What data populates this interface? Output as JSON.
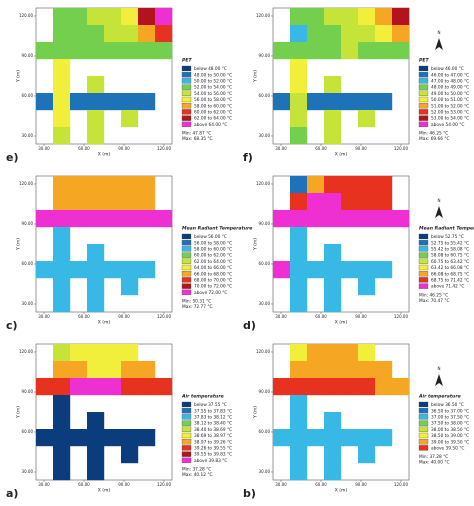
{
  "axes": {
    "x_title": "X (m)",
    "y_title": "Y (m)",
    "xlim": [
      24,
      126
    ],
    "ylim": [
      24,
      126
    ],
    "xticks": [
      {
        "value": 30,
        "label": "30.00"
      },
      {
        "value": 60,
        "label": "60.00"
      },
      {
        "value": 90,
        "label": "90.00"
      },
      {
        "value": 120,
        "label": "120.00"
      }
    ],
    "yticks": [
      {
        "value": 30,
        "label": "30.00"
      },
      {
        "value": 60,
        "label": "60.00"
      },
      {
        "value": 90,
        "label": "90.00"
      },
      {
        "value": 120,
        "label": "120.00"
      }
    ]
  },
  "panels": [
    {
      "label": "e)",
      "title": "PET",
      "legend": [
        {
          "text": "below 48.00 °C",
          "color": "#0b3d7c"
        },
        {
          "text": "48.00 to 50.00 °C",
          "color": "#1e73b8"
        },
        {
          "text": "50.00 to 52.00 °C",
          "color": "#38b8e4"
        },
        {
          "text": "52.00 to 54.00 °C",
          "color": "#74cf4e"
        },
        {
          "text": "54.00 to 56.00 °C",
          "color": "#c6e33a"
        },
        {
          "text": "56.00 to 58.00 °C",
          "color": "#f2ee3c"
        },
        {
          "text": "58.00 to 60.00 °C",
          "color": "#f5a623"
        },
        {
          "text": "60.00 to 62.00 °C",
          "color": "#e6321f"
        },
        {
          "text": "62.00 to 64.00 °C",
          "color": "#b3141c"
        },
        {
          "text": "above 64.00 °C",
          "color": "#ee2fd2"
        }
      ],
      "min": "Min: 47.87 °C",
      "max": "Max: 68.35 °C",
      "grid": [
        [
          null,
          3,
          3,
          4,
          4,
          5,
          8,
          9
        ],
        [
          null,
          3,
          3,
          3,
          4,
          4,
          6,
          7
        ],
        [
          3,
          3,
          3,
          3,
          3,
          3,
          3,
          3
        ],
        [
          null,
          5,
          null,
          null,
          null,
          null,
          null,
          null
        ],
        [
          null,
          5,
          null,
          4,
          null,
          null,
          null,
          null
        ],
        [
          1,
          5,
          1,
          1,
          1,
          1,
          1,
          null
        ],
        [
          null,
          5,
          null,
          4,
          null,
          4,
          null,
          null
        ],
        [
          null,
          4,
          null,
          4,
          null,
          null,
          null,
          null
        ]
      ]
    },
    {
      "label": "f)",
      "title": "PET",
      "legend": [
        {
          "text": "below 46.00 °C",
          "color": "#0b3d7c"
        },
        {
          "text": "46.00 to 47.00 °C",
          "color": "#1e73b8"
        },
        {
          "text": "47.00 to 48.00 °C",
          "color": "#38b8e4"
        },
        {
          "text": "48.00 to 49.00 °C",
          "color": "#74cf4e"
        },
        {
          "text": "49.00 to 50.00 °C",
          "color": "#c6e33a"
        },
        {
          "text": "50.00 to 51.00 °C",
          "color": "#f2ee3c"
        },
        {
          "text": "51.00 to 52.00 °C",
          "color": "#f5a623"
        },
        {
          "text": "52.00 to 53.00 °C",
          "color": "#e6321f"
        },
        {
          "text": "53.00 to 54.00 °C",
          "color": "#b3141c"
        },
        {
          "text": "above 54.00 °C",
          "color": "#ee2fd2"
        }
      ],
      "min": "Min: 46.25 °C",
      "max": "Max: 69.66 °C",
      "grid": [
        [
          null,
          3,
          3,
          4,
          4,
          5,
          6,
          8
        ],
        [
          null,
          2,
          3,
          3,
          4,
          4,
          5,
          6
        ],
        [
          3,
          3,
          3,
          3,
          4,
          3,
          3,
          3
        ],
        [
          null,
          5,
          null,
          null,
          null,
          null,
          null,
          null
        ],
        [
          null,
          5,
          null,
          4,
          null,
          null,
          null,
          null
        ],
        [
          1,
          4,
          1,
          1,
          1,
          1,
          1,
          null
        ],
        [
          null,
          4,
          null,
          4,
          null,
          4,
          null,
          null
        ],
        [
          null,
          3,
          null,
          4,
          null,
          null,
          null,
          null
        ]
      ]
    },
    {
      "label": "c)",
      "title": "Mean Radiant Temperature",
      "legend": [
        {
          "text": "below 56.00 °C",
          "color": "#0b3d7c"
        },
        {
          "text": "56.00 to 58.00 °C",
          "color": "#1e73b8"
        },
        {
          "text": "58.00 to 60.00 °C",
          "color": "#38b8e4"
        },
        {
          "text": "60.00 to 62.00 °C",
          "color": "#74cf4e"
        },
        {
          "text": "62.00 to 64.00 °C",
          "color": "#c6e33a"
        },
        {
          "text": "64.00 to 66.00 °C",
          "color": "#f2ee3c"
        },
        {
          "text": "66.00 to 68.00 °C",
          "color": "#f5a623"
        },
        {
          "text": "68.00 to 70.00 °C",
          "color": "#e6321f"
        },
        {
          "text": "70.00 to 72.00 °C",
          "color": "#b3141c"
        },
        {
          "text": "above 72.00 °C",
          "color": "#ee2fd2"
        }
      ],
      "min": "Min: 50.31 °C",
      "max": "Max: 72.77 °C",
      "grid": [
        [
          null,
          6,
          6,
          6,
          6,
          6,
          6,
          null
        ],
        [
          null,
          6,
          6,
          6,
          6,
          6,
          6,
          null
        ],
        [
          9,
          9,
          9,
          9,
          9,
          9,
          9,
          9
        ],
        [
          null,
          2,
          null,
          null,
          null,
          null,
          null,
          null
        ],
        [
          null,
          2,
          null,
          2,
          null,
          null,
          null,
          null
        ],
        [
          2,
          2,
          2,
          2,
          2,
          2,
          2,
          null
        ],
        [
          null,
          2,
          null,
          2,
          null,
          2,
          null,
          null
        ],
        [
          null,
          2,
          null,
          2,
          null,
          null,
          null,
          null
        ]
      ]
    },
    {
      "label": "d)",
      "title": "Mean Radiant Temperature",
      "legend": [
        {
          "text": "below 52.75 °C",
          "color": "#0b3d7c"
        },
        {
          "text": "52.75 to 55.42 °C",
          "color": "#1e73b8"
        },
        {
          "text": "55.42 to 58.08 °C",
          "color": "#38b8e4"
        },
        {
          "text": "58.08 to 60.75 °C",
          "color": "#74cf4e"
        },
        {
          "text": "60.75 to 63.42 °C",
          "color": "#c6e33a"
        },
        {
          "text": "63.42 to 66.08 °C",
          "color": "#f2ee3c"
        },
        {
          "text": "66.08 to 68.75 °C",
          "color": "#f5a623"
        },
        {
          "text": "68.75 to 71.42 °C",
          "color": "#e6321f"
        },
        {
          "text": "above 71.42 °C",
          "color": "#ee2fd2"
        }
      ],
      "min": "Min: 46.25 °C",
      "max": "Max: 70.47 °C",
      "grid": [
        [
          null,
          1,
          6,
          7,
          7,
          7,
          7,
          null
        ],
        [
          null,
          7,
          8,
          8,
          7,
          7,
          7,
          null
        ],
        [
          8,
          8,
          8,
          8,
          8,
          8,
          8,
          8
        ],
        [
          null,
          2,
          null,
          null,
          null,
          null,
          null,
          null
        ],
        [
          null,
          2,
          null,
          2,
          null,
          null,
          null,
          null
        ],
        [
          8,
          2,
          2,
          2,
          2,
          2,
          2,
          null
        ],
        [
          null,
          2,
          null,
          2,
          null,
          2,
          null,
          null
        ],
        [
          null,
          2,
          null,
          2,
          null,
          null,
          null,
          null
        ]
      ]
    },
    {
      "label": "a)",
      "title": "Air temperature",
      "legend": [
        {
          "text": "below 37.55 °C",
          "color": "#0b3d7c"
        },
        {
          "text": "37.55 to 37.83 °C",
          "color": "#1e73b8"
        },
        {
          "text": "37.83 to 38.12 °C",
          "color": "#38b8e4"
        },
        {
          "text": "38.12 to 38.40 °C",
          "color": "#74cf4e"
        },
        {
          "text": "38.40 to 38.69 °C",
          "color": "#c6e33a"
        },
        {
          "text": "38.69 to 38.97 °C",
          "color": "#f2ee3c"
        },
        {
          "text": "38.97 to 39.26 °C",
          "color": "#f5a623"
        },
        {
          "text": "39.26 to 39.55 °C",
          "color": "#e6321f"
        },
        {
          "text": "39.55 to 39.83 °C",
          "color": "#b3141c"
        },
        {
          "text": "above 39.83 °C",
          "color": "#ee2fd2"
        }
      ],
      "min": "Min: 37.28 °C",
      "max": "Max: 40.12 °C",
      "grid": [
        [
          null,
          4,
          5,
          5,
          5,
          5,
          null,
          null
        ],
        [
          null,
          6,
          6,
          5,
          5,
          6,
          6,
          null
        ],
        [
          7,
          7,
          9,
          9,
          9,
          7,
          7,
          7
        ],
        [
          null,
          0,
          null,
          null,
          null,
          null,
          null,
          null
        ],
        [
          null,
          0,
          null,
          0,
          null,
          null,
          null,
          null
        ],
        [
          0,
          0,
          0,
          0,
          0,
          0,
          0,
          null
        ],
        [
          null,
          0,
          null,
          0,
          null,
          0,
          null,
          null
        ],
        [
          null,
          0,
          null,
          0,
          null,
          null,
          null,
          null
        ]
      ]
    },
    {
      "label": "b)",
      "title": "Air temperature",
      "legend": [
        {
          "text": "below 36.50 °C",
          "color": "#0b3d7c"
        },
        {
          "text": "36.50 to 37.00 °C",
          "color": "#1e73b8"
        },
        {
          "text": "37.00 to 37.50 °C",
          "color": "#38b8e4"
        },
        {
          "text": "37.50 to 38.00 °C",
          "color": "#74cf4e"
        },
        {
          "text": "38.00 to 38.50 °C",
          "color": "#c6e33a"
        },
        {
          "text": "38.50 to 39.00 °C",
          "color": "#f2ee3c"
        },
        {
          "text": "39.00 to 39.50 °C",
          "color": "#f5a623"
        },
        {
          "text": "above 39.50 °C",
          "color": "#e6321f"
        }
      ],
      "min": "Min: 37.28 °C",
      "max": "Max: 40.00 °C",
      "grid": [
        [
          null,
          5,
          6,
          6,
          6,
          5,
          null,
          null
        ],
        [
          null,
          6,
          6,
          6,
          6,
          6,
          6,
          null
        ],
        [
          7,
          7,
          7,
          7,
          7,
          7,
          6,
          6
        ],
        [
          null,
          2,
          null,
          null,
          null,
          null,
          null,
          null
        ],
        [
          null,
          2,
          null,
          2,
          null,
          null,
          null,
          null
        ],
        [
          2,
          2,
          2,
          2,
          2,
          2,
          2,
          null
        ],
        [
          null,
          2,
          null,
          2,
          null,
          2,
          null,
          null
        ],
        [
          null,
          2,
          null,
          2,
          null,
          null,
          null,
          null
        ]
      ]
    }
  ]
}
